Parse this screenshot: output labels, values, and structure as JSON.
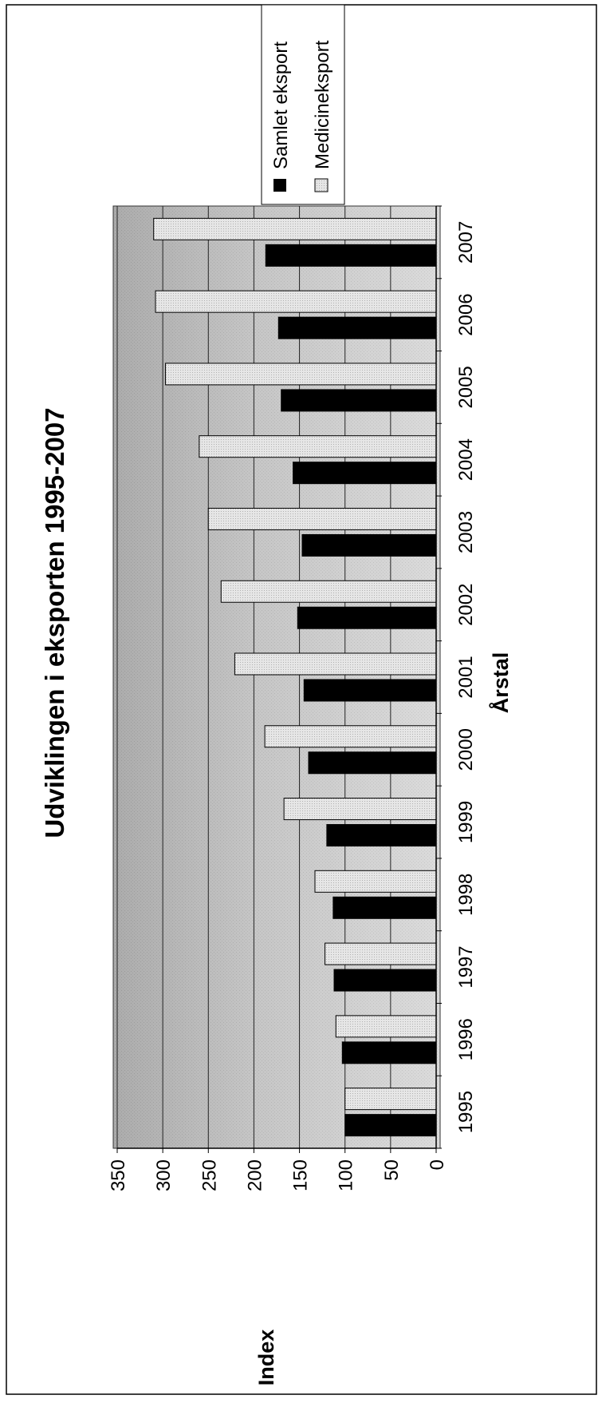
{
  "chart_data": {
    "type": "bar",
    "orientation": "rotated-90-ccw",
    "title": "Udviklingen i eksporten 1995-2007",
    "xlabel": "Årstal",
    "ylabel": "Index",
    "categories": [
      "1995",
      "1996",
      "1997",
      "1998",
      "1999",
      "2000",
      "2001",
      "2002",
      "2003",
      "2004",
      "2005",
      "2006",
      "2007"
    ],
    "ylim": [
      0,
      350
    ],
    "yticks": [
      0,
      50,
      100,
      150,
      200,
      250,
      300,
      350
    ],
    "grid": true,
    "legend_position": "right",
    "series": [
      {
        "name": "Samlet eksport",
        "color": "#000000",
        "values": [
          100,
          103,
          112,
          113,
          120,
          140,
          145,
          152,
          147,
          157,
          170,
          173,
          187
        ]
      },
      {
        "name": "Medicineksport",
        "color": "#d9d9d9",
        "values": [
          100,
          110,
          122,
          133,
          167,
          188,
          221,
          236,
          250,
          260,
          297,
          308,
          310
        ]
      }
    ]
  }
}
